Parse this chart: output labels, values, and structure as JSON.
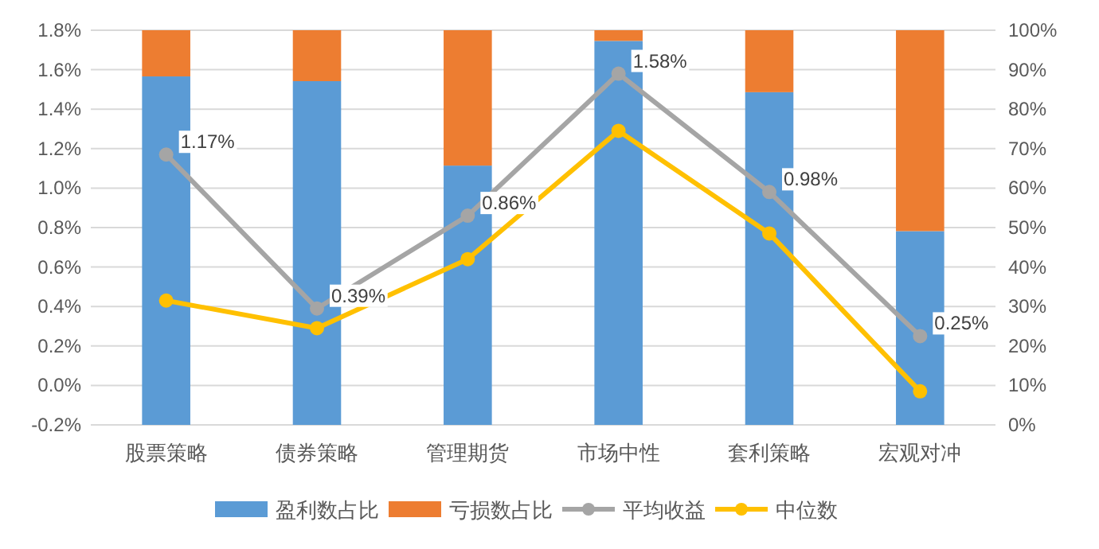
{
  "chart_data": {
    "type": "bar",
    "stacked": true,
    "categories": [
      "股票策略",
      "债券策略",
      "管理期货",
      "市场中性",
      "套利策略",
      "宏观对冲"
    ],
    "series": [
      {
        "name": "盈利数占比",
        "axis": "y2",
        "color": "#5b9bd5",
        "values": [
          88.3,
          87.1,
          65.7,
          97.3,
          84.3,
          49.1
        ]
      },
      {
        "name": "亏损数占比",
        "axis": "y2",
        "color": "#ed7d31",
        "values": [
          11.7,
          12.9,
          34.3,
          2.7,
          15.7,
          50.9
        ]
      },
      {
        "name": "平均收益",
        "type": "line",
        "axis": "y",
        "color": "#a5a5a5",
        "marker": "circle",
        "values": [
          1.17,
          0.39,
          0.86,
          1.58,
          0.98,
          0.25
        ],
        "value_labels": [
          "1.17%",
          "0.39%",
          "0.86%",
          "1.58%",
          "0.98%",
          "0.25%"
        ]
      },
      {
        "name": "中位数",
        "type": "line",
        "axis": "y",
        "color": "#ffc000",
        "marker": "circle",
        "values": [
          0.43,
          0.29,
          0.64,
          1.29,
          0.77,
          -0.03
        ]
      }
    ],
    "ylim": [
      -0.2,
      1.8
    ],
    "yticks": [
      {
        "value": -0.2,
        "label": "-0.2%"
      },
      {
        "value": 0,
        "label": "0.0%"
      },
      {
        "value": 0.2,
        "label": "0.2%"
      },
      {
        "value": 0.4,
        "label": "0.4%"
      },
      {
        "value": 0.6,
        "label": "0.6%"
      },
      {
        "value": 0.8,
        "label": "0.8%"
      },
      {
        "value": 1.0,
        "label": "1.0%"
      },
      {
        "value": 1.2,
        "label": "1.2%"
      },
      {
        "value": 1.4,
        "label": "1.4%"
      },
      {
        "value": 1.6,
        "label": "1.6%"
      },
      {
        "value": 1.8,
        "label": "1.8%"
      }
    ],
    "y2lim": [
      0,
      100
    ],
    "y2ticks": [
      {
        "value": 0,
        "label": "0%"
      },
      {
        "value": 10,
        "label": "10%"
      },
      {
        "value": 20,
        "label": "20%"
      },
      {
        "value": 30,
        "label": "30%"
      },
      {
        "value": 40,
        "label": "40%"
      },
      {
        "value": 50,
        "label": "50%"
      },
      {
        "value": 60,
        "label": "60%"
      },
      {
        "value": 70,
        "label": "70%"
      },
      {
        "value": 80,
        "label": "80%"
      },
      {
        "value": 90,
        "label": "90%"
      },
      {
        "value": 100,
        "label": "100%"
      }
    ],
    "grid": "y",
    "legend": "bottom"
  }
}
